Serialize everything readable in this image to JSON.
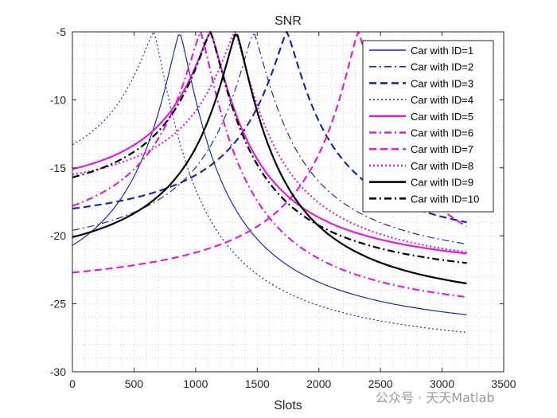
{
  "chart_data": {
    "type": "line",
    "title": "SNR",
    "xlabel": "Slots",
    "ylabel": "",
    "xlim": [
      0,
      3500
    ],
    "ylim": [
      -30,
      -5
    ],
    "xticks": [
      "0",
      "500",
      "1000",
      "1500",
      "2000",
      "2500",
      "3000",
      "3500"
    ],
    "yticks": [
      "-5",
      "-10",
      "-15",
      "-20",
      "-25",
      "-30"
    ],
    "grid": "minor dotted",
    "legend_position": "top-right",
    "series": [
      {
        "name": "Car with ID=1",
        "color": "#1a2aa8",
        "style": "solid",
        "width": "thin",
        "y0": -20.7,
        "peak_x": 870,
        "y_end": -25.8
      },
      {
        "name": "Car with ID=2",
        "color": "#1a2aa8",
        "style": "dashdot",
        "width": "thin",
        "y0": -19.6,
        "peak_x": 1470,
        "y_end": -20.6
      },
      {
        "name": "Car with ID=3",
        "color": "#1a2aa8",
        "style": "dashed",
        "width": "thick",
        "y0": -18.0,
        "peak_x": 1740,
        "y_end": -19.0
      },
      {
        "name": "Car with ID=4",
        "color": "#1a2aa8",
        "style": "dotted",
        "width": "thin",
        "y0": -13.3,
        "peak_x": 660,
        "y_end": -27.1
      },
      {
        "name": "Car with ID=5",
        "color": "#dd1fdd",
        "style": "solid",
        "width": "thick",
        "y0": -15.1,
        "peak_x": 1120,
        "y_end": -21.3
      },
      {
        "name": "Car with ID=6",
        "color": "#dd1fdd",
        "style": "dashdot",
        "width": "thick",
        "y0": -17.8,
        "peak_x": 1040,
        "y_end": -24.5
      },
      {
        "name": "Car with ID=7",
        "color": "#dd1fdd",
        "style": "dashed",
        "width": "thick",
        "y0": -22.7,
        "peak_x": 2320,
        "y_end": -19.3
      },
      {
        "name": "Car with ID=8",
        "color": "#dd1fdd",
        "style": "dotted",
        "width": "thick",
        "y0": -15.5,
        "peak_x": 1320,
        "y_end": -21.2
      },
      {
        "name": "Car with ID=9",
        "color": "#000000",
        "style": "solid",
        "width": "thick",
        "y0": -20.1,
        "peak_x": 1330,
        "y_end": -23.5
      },
      {
        "name": "Car with ID=10",
        "color": "#000000",
        "style": "dashdot",
        "width": "thick",
        "y0": -15.7,
        "peak_x": 1120,
        "y_end": -22.0
      }
    ],
    "x_end": 3200,
    "peak_y": -5
  },
  "watermark": "公众号 · 天天Matlab"
}
